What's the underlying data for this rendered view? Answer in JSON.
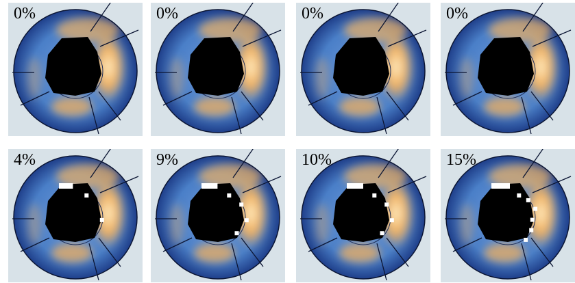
{
  "panels": [
    {
      "label": "0%",
      "defect_fraction": 0.0
    },
    {
      "label": "0%",
      "defect_fraction": 0.0
    },
    {
      "label": "0%",
      "defect_fraction": 0.0
    },
    {
      "label": "0%",
      "defect_fraction": 0.0
    },
    {
      "label": "4%",
      "defect_fraction": 0.04
    },
    {
      "label": "9%",
      "defect_fraction": 0.09
    },
    {
      "label": "10%",
      "defect_fraction": 0.1
    },
    {
      "label": "15%",
      "defect_fraction": 0.15
    }
  ],
  "colors": {
    "background_panel": "#d8e2e8",
    "ring_outer": "#1f3f8a",
    "ring_mid": "#4a7fc8",
    "hot": "#f0b060",
    "hot_core": "#fff0c8",
    "defect": "#000000",
    "reversible": "#ffffff"
  }
}
